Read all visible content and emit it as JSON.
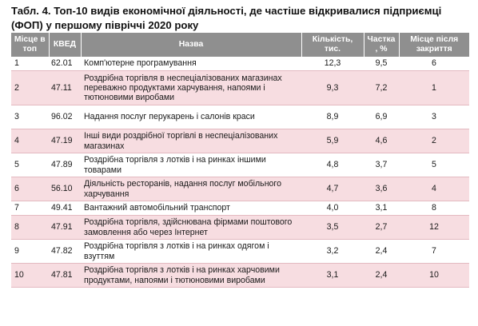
{
  "caption": "Табл. 4. Топ-10 видів економічної діяльності, де частіше відкривалися підприємці (ФОП) у першому півріччі 2020 року",
  "table": {
    "headers": {
      "rank": "Місце в топ",
      "code": "КВЕД",
      "name": "Назва",
      "count": "Кількість, тис.",
      "share": "Частка , %",
      "closure_rank": "Місце після закриття"
    },
    "rows": [
      {
        "rank": "1",
        "code": "62.01",
        "name": "Комп'ютерне програмування",
        "count": "12,3",
        "share": "9,5",
        "closure_rank": "6"
      },
      {
        "rank": "2",
        "code": "47.11",
        "name": "Роздрібна торгівля в неспеціалізованих магазинах переважно продуктами харчування, напоями і тютюновими виробами",
        "count": "9,3",
        "share": "7,2",
        "closure_rank": "1"
      },
      {
        "rank": "3",
        "code": "96.02",
        "name": "Надання послуг перукарень і салонів краси",
        "count": "8,9",
        "share": "6,9",
        "closure_rank": "3"
      },
      {
        "rank": "4",
        "code": "47.19",
        "name": "Інші види роздрібної торгівлі в неспеціалізованих магазинах",
        "count": "5,9",
        "share": "4,6",
        "closure_rank": "2"
      },
      {
        "rank": "5",
        "code": "47.89",
        "name": "Роздрібна торгівля з лотків і на ринках іншими товарами",
        "count": "4,8",
        "share": "3,7",
        "closure_rank": "5"
      },
      {
        "rank": "6",
        "code": "56.10",
        "name": "Діяльність ресторанів, надання послуг мобільного харчування",
        "count": "4,7",
        "share": "3,6",
        "closure_rank": "4"
      },
      {
        "rank": "7",
        "code": "49.41",
        "name": "Вантажний автомобільний транспорт",
        "count": "4,0",
        "share": "3,1",
        "closure_rank": "8"
      },
      {
        "rank": "8",
        "code": "47.91",
        "name": "Роздрібна торгівля, здійснювана фірмами поштового замовлення або через Інтернет",
        "count": "3,5",
        "share": "2,7",
        "closure_rank": "12"
      },
      {
        "rank": "9",
        "code": "47.82",
        "name": "Роздрібна торгівля з лотків і на ринках одягом і взуттям",
        "count": "3,2",
        "share": "2,4",
        "closure_rank": "7"
      },
      {
        "rank": "10",
        "code": "47.81",
        "name": "Роздрібна торгівля з лотків і на ринках харчовими продуктами, напоями і тютюновими виробами",
        "count": "3,1",
        "share": "2,4",
        "closure_rank": "10"
      }
    ]
  },
  "colors": {
    "header_bg": "#8f8f8f",
    "row_stripe": "#f7dde1"
  }
}
